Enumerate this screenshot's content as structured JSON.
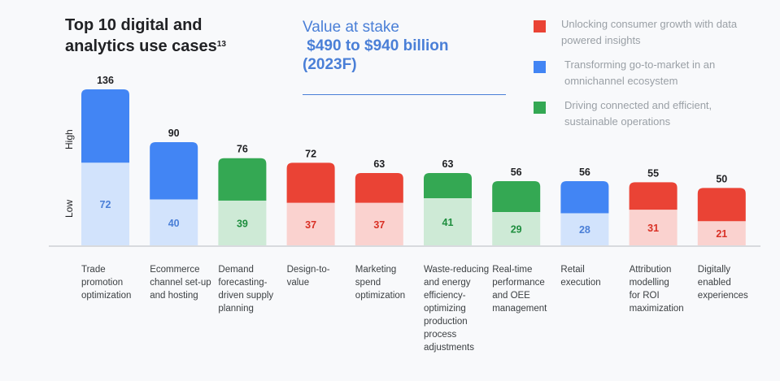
{
  "header": {
    "title_line1": "Top 10 digital and",
    "title_line2": "analytics use cases",
    "title_superscript": "13"
  },
  "value_at_stake": {
    "line1": "Value at stake",
    "line2": " $490 to $940 billion",
    "line3": "(2023F)"
  },
  "colors": {
    "red": "#ea4335",
    "red_light": "#fad2cf",
    "red_text": "#d93025",
    "blue": "#4285f4",
    "blue_light": "#d2e3fc",
    "blue_text": "#4a7fd7",
    "green": "#34a853",
    "green_light": "#ceead6",
    "green_text": "#1e8e3e"
  },
  "chart_data": {
    "type": "bar",
    "title": "Top 10 digital and analytics use cases",
    "xlabel": "",
    "ylabel": "",
    "y_axis_labels": [
      "Low",
      "High"
    ],
    "ylim": [
      0,
      136
    ],
    "grid": false,
    "legend_position": "top-right",
    "legend": [
      {
        "key": "red",
        "label": "Unlocking consumer growth with data powered insights"
      },
      {
        "key": "blue",
        "label": "Transforming go-to-market in an omnichannel ecosystem"
      },
      {
        "key": "green",
        "label": "Driving connected and efficient, sustainable operations"
      }
    ],
    "categories": [
      "Trade promotion optimization",
      "Ecommerce channel set-up and hosting",
      "Demand forecasting-driven supply planning",
      "Design-to-value",
      "Marketing spend optimization",
      "Waste-reducing and energy efficiency-optimizing production process adjustments",
      "Real-time performance and OEE management",
      "Retail execution",
      "Attribution modelling for ROI maximization",
      "Digitally enabled experiences"
    ],
    "category_lines": [
      [
        "Trade",
        "promotion",
        "optimization"
      ],
      [
        "Ecommerce",
        "channel set-up",
        "and hosting"
      ],
      [
        "Demand",
        "forecasting-",
        "driven supply",
        "planning"
      ],
      [
        "Design-to-",
        "value"
      ],
      [
        "Marketing",
        "spend",
        "optimization"
      ],
      [
        "Waste-reducing",
        "and energy",
        "efficiency-",
        "optimizing",
        "production",
        "process",
        "adjustments"
      ],
      [
        "Real-time",
        "performance",
        "and OEE",
        "management"
      ],
      [
        "Retail",
        "execution"
      ],
      [
        "Attribution",
        "modelling",
        "for ROI",
        "maximization"
      ],
      [
        "Digitally",
        "enabled",
        "experiences"
      ]
    ],
    "series": [
      {
        "name": "Low",
        "values": [
          72,
          40,
          39,
          37,
          37,
          41,
          29,
          28,
          31,
          21
        ]
      },
      {
        "name": "High",
        "values": [
          136,
          90,
          76,
          72,
          63,
          63,
          56,
          56,
          55,
          50
        ]
      }
    ],
    "groups": [
      "blue",
      "blue",
      "green",
      "red",
      "red",
      "green",
      "green",
      "blue",
      "red",
      "red"
    ]
  }
}
